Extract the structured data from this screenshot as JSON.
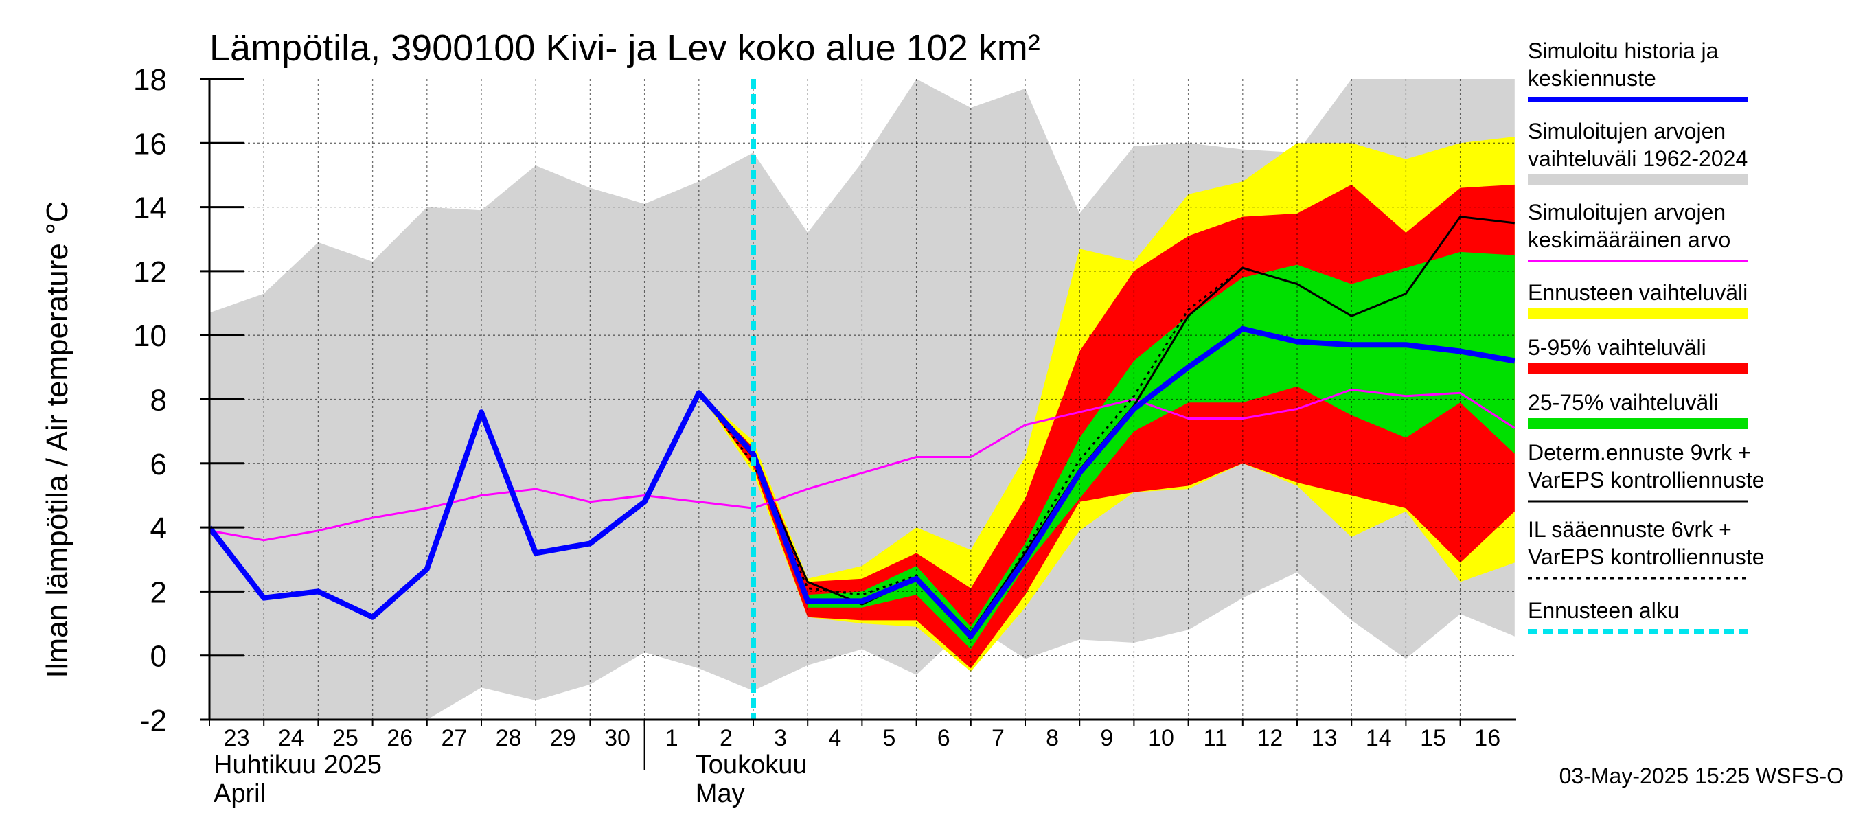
{
  "chart_data": {
    "type": "area",
    "title": "Lämpötila, 3900100 Kivi- ja Lev koko alue 102 km²",
    "ylabel": "Ilman lämpötila / Air temperature   °C",
    "ylim": [
      -2,
      18
    ],
    "yticks": [
      -2,
      0,
      2,
      4,
      6,
      8,
      10,
      12,
      14,
      16,
      18
    ],
    "grid": true,
    "legend_position": "right",
    "x_tick_labels": [
      "23",
      "24",
      "25",
      "26",
      "27",
      "28",
      "29",
      "30",
      "1",
      "2",
      "3",
      "4",
      "5",
      "6",
      "7",
      "8",
      "9",
      "10",
      "11",
      "12",
      "13",
      "14",
      "15",
      "16"
    ],
    "x_dates": [
      "2025-04-23",
      "2025-04-24",
      "2025-04-25",
      "2025-04-26",
      "2025-04-27",
      "2025-04-28",
      "2025-04-29",
      "2025-04-30",
      "2025-05-01",
      "2025-05-02",
      "2025-05-03",
      "2025-05-04",
      "2025-05-05",
      "2025-05-06",
      "2025-05-07",
      "2025-05-08",
      "2025-05-09",
      "2025-05-10",
      "2025-05-11",
      "2025-05-12",
      "2025-05-13",
      "2025-05-14",
      "2025-05-15",
      "2025-05-16"
    ],
    "month_labels": [
      {
        "line1": "Huhtikuu  2025",
        "line2": "April"
      },
      {
        "line1": "Toukokuu",
        "line2": "May"
      }
    ],
    "forecast_start": "2025-05-03",
    "timestamp": "03-May-2025 15:25 WSFS-O",
    "series": [
      {
        "name": "Simuloitujen arvojen vaihteluväli 1962-2024",
        "kind": "band",
        "color": "#d3d3d3",
        "x": [
          "2025-04-23",
          "2025-04-24",
          "2025-04-25",
          "2025-04-26",
          "2025-04-27",
          "2025-04-28",
          "2025-04-29",
          "2025-04-30",
          "2025-05-01",
          "2025-05-02",
          "2025-05-03",
          "2025-05-04",
          "2025-05-05",
          "2025-05-06",
          "2025-05-07",
          "2025-05-08",
          "2025-05-09",
          "2025-05-10",
          "2025-05-11",
          "2025-05-12",
          "2025-05-13",
          "2025-05-14",
          "2025-05-15",
          "2025-05-16",
          "2025-05-17"
        ],
        "upper": [
          10.7,
          11.3,
          12.9,
          12.3,
          14.0,
          13.9,
          15.3,
          14.6,
          14.1,
          14.8,
          15.7,
          13.2,
          15.4,
          18.0,
          17.1,
          17.7,
          13.8,
          15.9,
          16.0,
          15.8,
          15.7,
          18.0,
          18.0,
          18.0,
          18.0
        ],
        "lower": [
          -2.0,
          -2.0,
          -2.0,
          -2.0,
          -2.0,
          -1.0,
          -1.4,
          -0.9,
          0.1,
          -0.4,
          -1.1,
          -0.3,
          0.2,
          -0.6,
          1.0,
          -0.1,
          0.5,
          0.4,
          0.8,
          1.8,
          2.6,
          1.1,
          -0.1,
          1.3,
          0.6
        ]
      },
      {
        "name": "Ennusteen vaihteluväli",
        "kind": "band",
        "color": "#ffff00",
        "x": [
          "2025-05-02",
          "2025-05-03",
          "2025-05-04",
          "2025-05-05",
          "2025-05-06",
          "2025-05-07",
          "2025-05-08",
          "2025-05-09",
          "2025-05-10",
          "2025-05-11",
          "2025-05-12",
          "2025-05-13",
          "2025-05-14",
          "2025-05-15",
          "2025-05-16",
          "2025-05-17"
        ],
        "upper": [
          8.2,
          6.7,
          2.4,
          2.8,
          4.0,
          3.3,
          6.2,
          12.7,
          12.3,
          14.4,
          14.8,
          16.0,
          16.0,
          15.5,
          16.0,
          16.2
        ],
        "lower": [
          8.2,
          5.7,
          1.2,
          1.0,
          0.9,
          -0.5,
          1.5,
          3.9,
          5.1,
          5.2,
          6.0,
          5.3,
          3.7,
          4.5,
          2.3,
          2.9
        ]
      },
      {
        "name": "5-95% vaihteluväli",
        "kind": "band",
        "color": "#ff0000",
        "x": [
          "2025-05-02",
          "2025-05-03",
          "2025-05-04",
          "2025-05-05",
          "2025-05-06",
          "2025-05-07",
          "2025-05-08",
          "2025-05-09",
          "2025-05-10",
          "2025-05-11",
          "2025-05-12",
          "2025-05-13",
          "2025-05-14",
          "2025-05-15",
          "2025-05-16",
          "2025-05-17"
        ],
        "upper": [
          8.2,
          6.5,
          2.3,
          2.4,
          3.2,
          2.1,
          4.9,
          9.5,
          12.0,
          13.1,
          13.7,
          13.8,
          14.7,
          13.2,
          14.6,
          14.7
        ],
        "lower": [
          8.2,
          5.9,
          1.2,
          1.1,
          1.1,
          -0.4,
          1.9,
          4.8,
          5.1,
          5.3,
          6.0,
          5.4,
          5.0,
          4.6,
          2.9,
          4.5
        ]
      },
      {
        "name": "25-75% vaihteluväli",
        "kind": "band",
        "color": "#00e000",
        "x": [
          "2025-05-04",
          "2025-05-05",
          "2025-05-06",
          "2025-05-07",
          "2025-05-08",
          "2025-05-09",
          "2025-05-10",
          "2025-05-11",
          "2025-05-12",
          "2025-05-13",
          "2025-05-14",
          "2025-05-15",
          "2025-05-16",
          "2025-05-17"
        ],
        "upper": [
          1.9,
          2.0,
          2.8,
          0.9,
          3.5,
          6.8,
          9.2,
          10.6,
          11.8,
          12.2,
          11.6,
          12.1,
          12.6,
          12.5
        ],
        "lower": [
          1.5,
          1.5,
          1.9,
          0.2,
          2.8,
          4.9,
          7.0,
          7.9,
          7.9,
          8.4,
          7.5,
          6.8,
          7.9,
          6.3
        ]
      },
      {
        "name": "Simuloitujen arvojen keskimääräinen arvo",
        "kind": "line",
        "color": "#ff00ff",
        "x": [
          "2025-04-23",
          "2025-04-24",
          "2025-04-25",
          "2025-04-26",
          "2025-04-27",
          "2025-04-28",
          "2025-04-29",
          "2025-04-30",
          "2025-05-01",
          "2025-05-02",
          "2025-05-03",
          "2025-05-04",
          "2025-05-05",
          "2025-05-06",
          "2025-05-07",
          "2025-05-08",
          "2025-05-09",
          "2025-05-10",
          "2025-05-11",
          "2025-05-12",
          "2025-05-13",
          "2025-05-14",
          "2025-05-15",
          "2025-05-16",
          "2025-05-17"
        ],
        "y": [
          3.9,
          3.6,
          3.9,
          4.3,
          4.6,
          5.0,
          5.2,
          4.8,
          5.0,
          4.8,
          4.6,
          5.2,
          5.7,
          6.2,
          6.2,
          7.2,
          7.6,
          8.0,
          7.4,
          7.4,
          7.7,
          8.3,
          8.1,
          8.2,
          7.1
        ]
      },
      {
        "name": "IL sääennuste 6vrk  +  VarEPS kontrolliennuste",
        "kind": "line",
        "color": "#000000",
        "dash": "dotted",
        "x": [
          "2025-05-02",
          "2025-05-03",
          "2025-05-04",
          "2025-05-05",
          "2025-05-06",
          "2025-05-07",
          "2025-05-08",
          "2025-05-09",
          "2025-05-10",
          "2025-05-11",
          "2025-05-12"
        ],
        "y": [
          8.2,
          6.0,
          2.1,
          1.9,
          2.5,
          0.5,
          3.3,
          6.1,
          8.1,
          10.8,
          12.1
        ]
      },
      {
        "name": "Determ.ennuste 9vrk  +  VarEPS kontrolliennuste",
        "kind": "line",
        "color": "#000000",
        "x": [
          "2025-05-02",
          "2025-05-03",
          "2025-05-04",
          "2025-05-05",
          "2025-05-06",
          "2025-05-07",
          "2025-05-08",
          "2025-05-09",
          "2025-05-10",
          "2025-05-11",
          "2025-05-12",
          "2025-05-13",
          "2025-05-14",
          "2025-05-15",
          "2025-05-16",
          "2025-05-17"
        ],
        "y": [
          8.2,
          6.2,
          2.3,
          1.6,
          2.4,
          0.7,
          3.2,
          5.8,
          7.8,
          10.6,
          12.1,
          11.6,
          10.6,
          11.3,
          13.7,
          13.5
        ]
      },
      {
        "name": "Simuloitu historia ja keskiennuste",
        "kind": "line",
        "color": "#0000ff",
        "x": [
          "2025-04-23",
          "2025-04-24",
          "2025-04-25",
          "2025-04-26",
          "2025-04-27",
          "2025-04-28",
          "2025-04-29",
          "2025-04-30",
          "2025-05-01",
          "2025-05-02",
          "2025-05-03",
          "2025-05-04",
          "2025-05-05",
          "2025-05-06",
          "2025-05-07",
          "2025-05-08",
          "2025-05-09",
          "2025-05-10",
          "2025-05-11",
          "2025-05-12",
          "2025-05-13",
          "2025-05-14",
          "2025-05-15",
          "2025-05-16",
          "2025-05-17"
        ],
        "y": [
          4.0,
          1.8,
          2.0,
          1.2,
          2.7,
          7.6,
          3.2,
          3.5,
          4.8,
          8.2,
          6.3,
          1.7,
          1.7,
          2.4,
          0.6,
          3.0,
          5.7,
          7.7,
          9.0,
          10.2,
          9.8,
          9.7,
          9.7,
          9.5,
          9.2
        ]
      }
    ]
  },
  "legend": [
    {
      "lines": [
        "Simuloitu historia ja",
        "keskiennuste"
      ],
      "color": "#0000ff",
      "style": "line"
    },
    {
      "lines": [
        "Simuloitujen arvojen",
        "vaihteluväli 1962-2024"
      ],
      "color": "#d3d3d3",
      "style": "band"
    },
    {
      "lines": [
        "Simuloitujen arvojen",
        "keskimääräinen arvo"
      ],
      "color": "#ff00ff",
      "style": "thin"
    },
    {
      "lines": [
        "Ennusteen vaihteluväli"
      ],
      "color": "#ffff00",
      "style": "band"
    },
    {
      "lines": [
        "5-95% vaihteluväli"
      ],
      "color": "#ff0000",
      "style": "band"
    },
    {
      "lines": [
        "25-75% vaihteluväli"
      ],
      "color": "#00e000",
      "style": "band"
    },
    {
      "lines": [
        "Determ.ennuste 9vrk  +",
        "VarEPS kontrolliennuste"
      ],
      "color": "#000000",
      "style": "thin"
    },
    {
      "lines": [
        "IL sääennuste 6vrk  +",
        "  VarEPS kontrolliennuste"
      ],
      "color": "#000000",
      "style": "dotted"
    },
    {
      "lines": [
        "Ennusteen alku"
      ],
      "color": "#00e5ee",
      "style": "dashed"
    }
  ]
}
